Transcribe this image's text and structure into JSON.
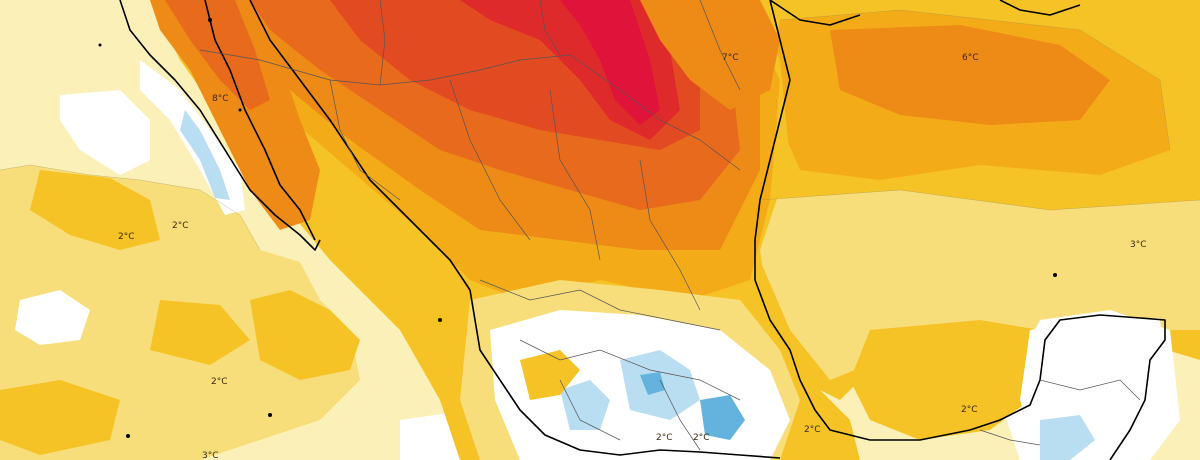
{
  "map": {
    "palette": {
      "background": "#fbf1b8",
      "light_yellow": "#f8de7a",
      "yellow": "#f5c326",
      "deep_yellow": "#f3ac18",
      "orange": "#ee8a16",
      "dark_orange": "#e86a1c",
      "red_orange": "#e24a22",
      "red": "#df2a2c",
      "magenta_red": "#e0143a",
      "white": "#ffffff",
      "light_blue": "#b9def2",
      "blue": "#64b3de",
      "coastline": "#000000",
      "borders": "#555555"
    },
    "labels": {
      "baja_north": "8°C",
      "pacific_a": "2°C",
      "pacific_b": "2°C",
      "texas": "7°C",
      "gulf_north": "6°C",
      "caribbean_east": "3°C",
      "pacific_south": "2°C",
      "pacific_south_edge": "3°C",
      "yucatan_coast": "2°C",
      "central_a": "2°C",
      "central_b": "2°C",
      "veracruz": "2°C"
    }
  }
}
